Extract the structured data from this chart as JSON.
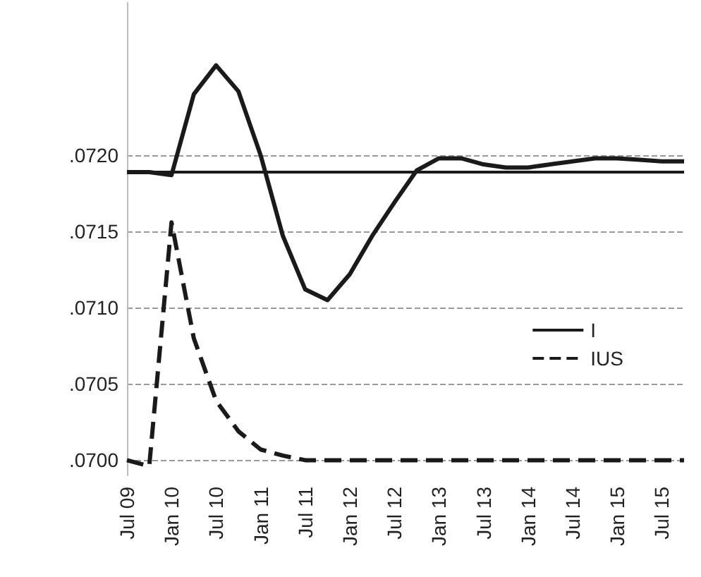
{
  "chart_data": {
    "type": "line",
    "categories": [
      "Jul 09",
      null,
      "Jan 10",
      null,
      "Jul 10",
      null,
      "Jan 11",
      null,
      "Jul 11",
      null,
      "Jan 12",
      null,
      "Jul 12",
      null,
      "Jan 13",
      null,
      "Jul 13",
      null,
      "Jan 14",
      null,
      "Jul 14",
      null,
      "Jan 15",
      null,
      "Jul 15",
      null
    ],
    "series": [
      {
        "name": "I",
        "color": "#1a1a1a",
        "line_style": "solid",
        "values": [
          0.07189,
          0.07189,
          0.07187,
          0.0724,
          0.07259,
          0.07242,
          0.072,
          0.07147,
          0.07112,
          0.07105,
          0.07122,
          0.07147,
          0.07169,
          0.0719,
          0.07198,
          0.07198,
          0.07194,
          0.07192,
          0.07192,
          0.07194,
          0.07196,
          0.07198,
          0.07198,
          0.07197,
          0.07196,
          0.07196
        ]
      },
      {
        "name": "IUS",
        "color": "#1a1a1a",
        "line_style": "dashed",
        "values": [
          0.07,
          0.06996,
          0.07156,
          0.0708,
          0.07039,
          0.07019,
          0.07007,
          0.07003,
          0.07,
          0.07,
          0.07,
          0.07,
          0.07,
          0.07,
          0.07,
          0.07,
          0.07,
          0.07,
          0.07,
          0.07,
          0.07,
          0.07,
          0.07,
          0.07,
          0.07,
          0.07
        ]
      }
    ],
    "ref_lines": [
      {
        "axis": "y",
        "value": 0.07189,
        "color": "#1a1a1a",
        "line_style": "solid"
      }
    ],
    "ylim": [
      0.0699,
      0.073
    ],
    "yticks": [
      {
        "value": 0.07,
        "label": ".0700"
      },
      {
        "value": 0.0705,
        "label": ".0705"
      },
      {
        "value": 0.071,
        "label": ".0710"
      },
      {
        "value": 0.0715,
        "label": ".0715"
      },
      {
        "value": 0.072,
        "label": ".0720"
      }
    ],
    "grid": "y",
    "legend": "right",
    "marker": "none"
  }
}
